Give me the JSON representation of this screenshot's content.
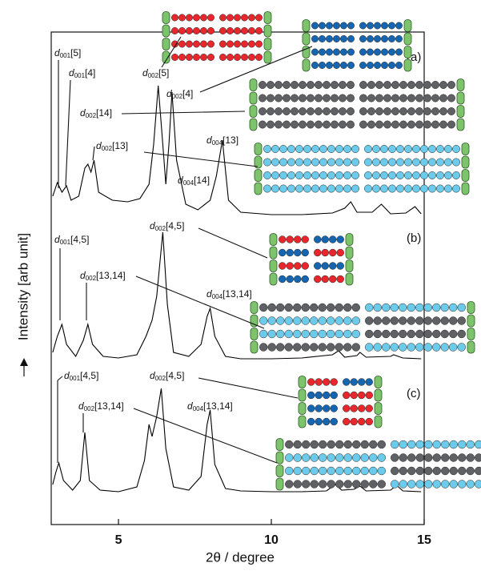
{
  "chart_data": {
    "type": "line",
    "x_label": "2θ / degree",
    "y_label": "Intensity [arb unit]",
    "xlim": [
      2.8,
      15
    ],
    "xticks": [
      5,
      10,
      15
    ],
    "ylim": [
      0,
      615
    ],
    "series": [
      {
        "name": "(a)",
        "color": "#000000",
        "x": [
          2.85,
          3.0,
          3.15,
          3.3,
          3.45,
          3.7,
          3.9,
          4.0,
          4.1,
          4.2,
          4.35,
          4.8,
          5.3,
          5.7,
          6.0,
          6.15,
          6.3,
          6.45,
          6.55,
          6.65,
          6.75,
          6.9,
          7.2,
          7.6,
          8.0,
          8.2,
          8.4,
          8.6,
          9.0,
          10,
          11,
          12.0,
          12.4,
          12.6,
          12.8,
          13.3,
          13.6,
          13.9,
          14.4,
          14.7,
          14.9
        ],
        "values": [
          410,
          427,
          415,
          423,
          405,
          410,
          445,
          450,
          440,
          455,
          415,
          405,
          403,
          407,
          425,
          475,
          548,
          475,
          425,
          475,
          540,
          455,
          400,
          393,
          405,
          435,
          480,
          405,
          390,
          387,
          387,
          389,
          395,
          403,
          390,
          390,
          400,
          388,
          389,
          397,
          388
        ]
      },
      {
        "name": "(b)",
        "color": "#000000",
        "x": [
          2.85,
          3.0,
          3.15,
          3.3,
          3.6,
          3.85,
          4.0,
          4.15,
          4.5,
          5.0,
          5.6,
          5.9,
          6.1,
          6.25,
          6.45,
          6.6,
          6.8,
          7.3,
          7.7,
          7.9,
          8.0,
          8.15,
          8.5,
          9,
          10,
          11,
          12.0,
          12.2,
          12.4,
          12.8,
          12.9,
          13.1,
          13.9,
          14.0,
          14.3,
          14.9
        ],
        "values": [
          215,
          235,
          250,
          225,
          210,
          230,
          250,
          225,
          210,
          208,
          212,
          235,
          255,
          285,
          365,
          275,
          215,
          210,
          225,
          260,
          270,
          235,
          210,
          207,
          207,
          208,
          212,
          217,
          209,
          211,
          215,
          209,
          210,
          212,
          208,
          207
        ]
      },
      {
        "name": "(c)",
        "color": "#000000",
        "x": [
          2.85,
          2.95,
          3.05,
          3.2,
          3.5,
          3.75,
          3.9,
          4.05,
          4.4,
          5.0,
          5.6,
          5.85,
          6.0,
          6.1,
          6.25,
          6.4,
          6.55,
          6.8,
          7.3,
          7.7,
          7.9,
          8.0,
          8.15,
          8.5,
          9,
          10,
          11,
          11.8,
          12.1,
          12.3,
          12.7,
          12.9,
          13.1,
          13.9,
          14.1,
          14.3,
          14.9
        ],
        "values": [
          50,
          65,
          77,
          55,
          43,
          55,
          115,
          55,
          43,
          41,
          47,
          80,
          125,
          110,
          135,
          170,
          95,
          47,
          43,
          60,
          125,
          143,
          75,
          45,
          42,
          41,
          41,
          42,
          50,
          43,
          44,
          48,
          42,
          43,
          49,
          42,
          41
        ]
      }
    ],
    "annotations": [
      {
        "symbol": "d",
        "sub": "001",
        "suffix": "[5]"
      },
      {
        "symbol": "d",
        "sub": "001",
        "suffix": "[4]"
      },
      {
        "symbol": "d",
        "sub": "002",
        "suffix": "[5]"
      },
      {
        "symbol": "d",
        "sub": "002",
        "suffix": "[4]"
      },
      {
        "symbol": "d",
        "sub": "002",
        "suffix": "[14]"
      },
      {
        "symbol": "d",
        "sub": "002",
        "suffix": "[13]"
      },
      {
        "symbol": "d",
        "sub": "004",
        "suffix": "[14]"
      },
      {
        "symbol": "d",
        "sub": "004",
        "suffix": "[13]"
      },
      {
        "symbol": "d",
        "sub": "001",
        "suffix": "[4,5]"
      },
      {
        "symbol": "d",
        "sub": "002",
        "suffix": "[4,5]"
      },
      {
        "symbol": "d",
        "sub": "002",
        "suffix": "[13,14]"
      },
      {
        "symbol": "d",
        "sub": "004",
        "suffix": "[13,14]"
      },
      {
        "symbol": "d",
        "sub": "001",
        "suffix": "[4,5]"
      },
      {
        "symbol": "d",
        "sub": "002",
        "suffix": "[4,5]"
      },
      {
        "symbol": "d",
        "sub": "002",
        "suffix": "[13,14]"
      },
      {
        "symbol": "d",
        "sub": "004",
        "suffix": "[13,14]"
      }
    ]
  }
}
